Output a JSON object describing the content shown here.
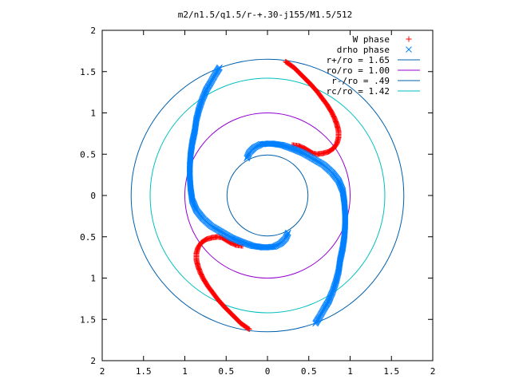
{
  "chart_data": {
    "type": "scatter",
    "title": "m2/n1.5/q1.5/r-+.30-j155/M1.5/512",
    "xlim": [
      -2,
      2
    ],
    "ylim": [
      -2,
      2
    ],
    "x_ticks": [
      -2,
      -1.5,
      -1,
      -0.5,
      0,
      0.5,
      1,
      1.5,
      2
    ],
    "y_ticks": [
      -2,
      -1.5,
      -1,
      -0.5,
      0,
      0.5,
      1,
      1.5,
      2
    ],
    "x_tick_labels": [
      "2",
      "1.5",
      "1",
      "0.5",
      "0",
      "0.5",
      "1",
      "1.5",
      "2"
    ],
    "y_tick_labels": [
      "2",
      "1.5",
      "1",
      "0.5",
      "0",
      "0.5",
      "1",
      "1.5",
      "2"
    ],
    "grid": false,
    "legend_position": "top-right",
    "series": [
      {
        "name": "W phase",
        "marker": "plus",
        "color": "#ff0000",
        "points": [
          [
            0.22,
            1.62
          ],
          [
            0.32,
            1.55
          ],
          [
            0.42,
            1.45
          ],
          [
            0.52,
            1.35
          ],
          [
            0.6,
            1.26
          ],
          [
            0.66,
            1.18
          ],
          [
            0.72,
            1.1
          ],
          [
            0.77,
            1.02
          ],
          [
            0.81,
            0.94
          ],
          [
            0.84,
            0.86
          ],
          [
            0.86,
            0.78
          ],
          [
            0.86,
            0.7
          ],
          [
            0.84,
            0.63
          ],
          [
            0.8,
            0.57
          ],
          [
            0.74,
            0.53
          ],
          [
            0.67,
            0.51
          ],
          [
            0.6,
            0.5
          ],
          [
            0.55,
            0.51
          ],
          [
            0.5,
            0.54
          ],
          [
            0.45,
            0.57
          ],
          [
            0.38,
            0.6
          ],
          [
            0.3,
            0.61
          ],
          [
            -0.22,
            -1.62
          ],
          [
            -0.32,
            -1.55
          ],
          [
            -0.42,
            -1.45
          ],
          [
            -0.52,
            -1.35
          ],
          [
            -0.6,
            -1.26
          ],
          [
            -0.66,
            -1.18
          ],
          [
            -0.72,
            -1.1
          ],
          [
            -0.77,
            -1.02
          ],
          [
            -0.81,
            -0.94
          ],
          [
            -0.84,
            -0.86
          ],
          [
            -0.86,
            -0.78
          ],
          [
            -0.86,
            -0.7
          ],
          [
            -0.84,
            -0.63
          ],
          [
            -0.8,
            -0.57
          ],
          [
            -0.74,
            -0.53
          ],
          [
            -0.67,
            -0.51
          ],
          [
            -0.6,
            -0.5
          ],
          [
            -0.55,
            -0.51
          ],
          [
            -0.5,
            -0.54
          ],
          [
            -0.45,
            -0.57
          ],
          [
            -0.38,
            -0.6
          ],
          [
            -0.3,
            -0.61
          ]
        ]
      },
      {
        "name": "drho phase",
        "marker": "cross",
        "color": "#0080ff",
        "points": [
          [
            -0.58,
            1.55
          ],
          [
            -0.63,
            1.47
          ],
          [
            -0.68,
            1.38
          ],
          [
            -0.74,
            1.28
          ],
          [
            -0.79,
            1.16
          ],
          [
            -0.83,
            1.04
          ],
          [
            -0.86,
            0.92
          ],
          [
            -0.88,
            0.78
          ],
          [
            -0.91,
            0.64
          ],
          [
            -0.93,
            0.5
          ],
          [
            -0.94,
            0.36
          ],
          [
            -0.94,
            0.22
          ],
          [
            -0.93,
            0.08
          ],
          [
            -0.91,
            -0.06
          ],
          [
            -0.86,
            -0.18
          ],
          [
            -0.78,
            -0.28
          ],
          [
            -0.68,
            -0.37
          ],
          [
            -0.56,
            -0.44
          ],
          [
            -0.44,
            -0.51
          ],
          [
            -0.32,
            -0.56
          ],
          [
            -0.18,
            -0.61
          ],
          [
            -0.04,
            -0.63
          ],
          [
            0.08,
            -0.62
          ],
          [
            0.16,
            -0.58
          ],
          [
            0.22,
            -0.52
          ],
          [
            0.25,
            -0.45
          ],
          [
            0.58,
            -1.55
          ],
          [
            0.63,
            -1.47
          ],
          [
            0.68,
            -1.38
          ],
          [
            0.74,
            -1.28
          ],
          [
            0.79,
            -1.16
          ],
          [
            0.83,
            -1.04
          ],
          [
            0.86,
            -0.92
          ],
          [
            0.88,
            -0.78
          ],
          [
            0.91,
            -0.64
          ],
          [
            0.93,
            -0.5
          ],
          [
            0.94,
            -0.36
          ],
          [
            0.94,
            -0.22
          ],
          [
            0.93,
            -0.08
          ],
          [
            0.91,
            0.06
          ],
          [
            0.86,
            0.18
          ],
          [
            0.78,
            0.28
          ],
          [
            0.68,
            0.37
          ],
          [
            0.56,
            0.44
          ],
          [
            0.44,
            0.51
          ],
          [
            0.32,
            0.56
          ],
          [
            0.18,
            0.61
          ],
          [
            0.04,
            0.63
          ],
          [
            -0.08,
            0.62
          ],
          [
            -0.16,
            0.58
          ],
          [
            -0.22,
            0.52
          ],
          [
            -0.25,
            0.45
          ]
        ]
      }
    ],
    "circles": [
      {
        "name": "r+/ro = 1.65",
        "radius": 1.65,
        "color": "#0060ad"
      },
      {
        "name": "ro/ro = 1.00",
        "radius": 1.0,
        "color": "#9400d3"
      },
      {
        "name": "r-/ro = .49",
        "radius": 0.49,
        "color": "#0060ad"
      },
      {
        "name": "rc/ro = 1.42",
        "radius": 1.42,
        "color": "#00c0c0"
      }
    ]
  }
}
